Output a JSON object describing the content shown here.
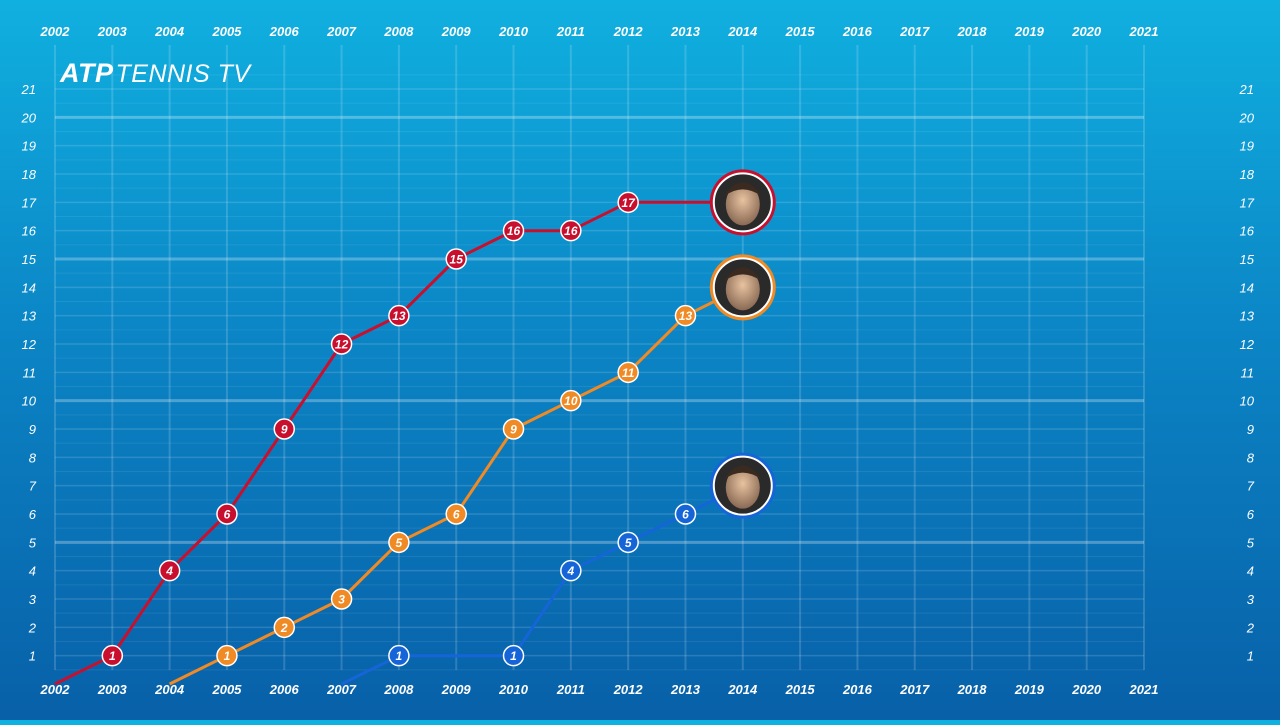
{
  "logo": {
    "atp": "ATP",
    "tennis_tv": "TENNIS TV"
  },
  "chart_data": {
    "type": "line",
    "title": "",
    "xlabel": "",
    "ylabel": "",
    "xlim": [
      2002,
      2021
    ],
    "ylim": [
      0,
      21
    ],
    "x_ticks": [
      2002,
      2003,
      2004,
      2005,
      2006,
      2007,
      2008,
      2009,
      2010,
      2011,
      2012,
      2013,
      2014,
      2015,
      2016,
      2017,
      2018,
      2019,
      2020,
      2021
    ],
    "y_ticks": [
      1,
      2,
      3,
      4,
      5,
      6,
      7,
      8,
      9,
      10,
      11,
      12,
      13,
      14,
      15,
      16,
      17,
      18,
      19,
      20,
      21
    ],
    "grid": true,
    "series": [
      {
        "color": "#c8102e",
        "avatar": "player-portrait-red",
        "start": [
          2002,
          0
        ],
        "points": [
          [
            2003,
            1
          ],
          [
            2004,
            4
          ],
          [
            2005,
            6
          ],
          [
            2006,
            9
          ],
          [
            2007,
            12
          ],
          [
            2008,
            13
          ],
          [
            2009,
            15
          ],
          [
            2010,
            16
          ],
          [
            2011,
            16
          ],
          [
            2012,
            17
          ]
        ],
        "end": [
          2014,
          17
        ]
      },
      {
        "color": "#f08a24",
        "avatar": "player-portrait-orange",
        "start": [
          2004,
          0
        ],
        "points": [
          [
            2005,
            1
          ],
          [
            2006,
            2
          ],
          [
            2007,
            3
          ],
          [
            2008,
            5
          ],
          [
            2009,
            6
          ],
          [
            2010,
            9
          ],
          [
            2011,
            10
          ],
          [
            2012,
            11
          ],
          [
            2013,
            13
          ]
        ],
        "end": [
          2014,
          14
        ]
      },
      {
        "color": "#1565d8",
        "avatar": "player-portrait-blue",
        "start": [
          2007,
          0
        ],
        "points": [
          [
            2008,
            1
          ],
          [
            2010,
            1
          ],
          [
            2011,
            4
          ],
          [
            2012,
            5
          ],
          [
            2013,
            6
          ]
        ],
        "end": [
          2014,
          7
        ]
      }
    ]
  }
}
